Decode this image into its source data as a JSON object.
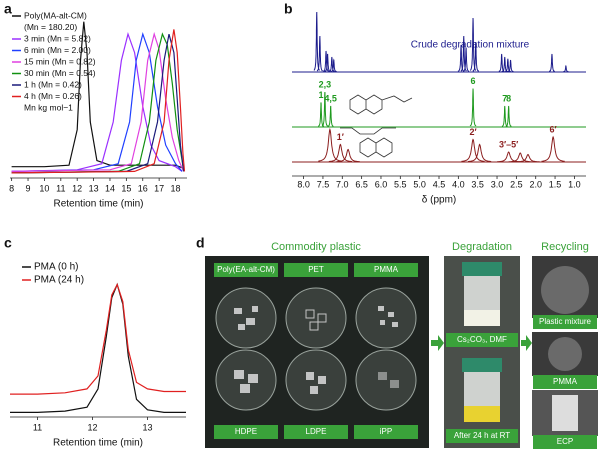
{
  "panel_labels": [
    "a",
    "b",
    "c",
    "d"
  ],
  "chart_data": [
    {
      "type": "line",
      "xlabel": "Retention time (min)",
      "xlim": [
        7.9,
        18.7
      ],
      "xticks": [
        8,
        9,
        10,
        11,
        12,
        13,
        14,
        15,
        16,
        17,
        18
      ],
      "ylim": [
        0,
        1.05
      ],
      "legend_note": "(Mn = 180.20)",
      "legend_units": "Mn kg mol−1",
      "series": [
        {
          "name": "Poly(MA-alt-CM)",
          "color": "#111111",
          "x": [
            8,
            10,
            11.5,
            12.0,
            12.2,
            12.4,
            12.6,
            12.8,
            13.2,
            14,
            16,
            18,
            18.5
          ],
          "values": [
            0.06,
            0.06,
            0.07,
            0.3,
            0.75,
            1.0,
            0.8,
            0.35,
            0.1,
            0.07,
            0.07,
            0.07,
            0.05
          ]
        },
        {
          "name": "3 min (Mn = 5.82)",
          "color": "#9b30ff",
          "x": [
            8,
            12,
            13.5,
            14.2,
            14.7,
            15.1,
            15.5,
            16.0,
            16.5,
            17,
            18,
            18.4
          ],
          "values": [
            0.03,
            0.04,
            0.08,
            0.35,
            0.75,
            0.92,
            0.8,
            0.45,
            0.2,
            0.1,
            0.06,
            0.03
          ]
        },
        {
          "name": "6 min (Mn = 2.00)",
          "color": "#2040ff",
          "x": [
            8,
            13,
            14.5,
            15.2,
            15.6,
            16.0,
            16.4,
            16.9,
            17.4,
            18,
            18.4
          ],
          "values": [
            0.03,
            0.04,
            0.08,
            0.35,
            0.75,
            0.92,
            0.8,
            0.45,
            0.2,
            0.08,
            0.03
          ]
        },
        {
          "name": "15 min (Mn = 0.82)",
          "color": "#e040e0",
          "x": [
            8,
            14,
            15.3,
            15.9,
            16.3,
            16.7,
            17.0,
            17.4,
            17.8,
            18.2,
            18.5
          ],
          "values": [
            0.03,
            0.04,
            0.08,
            0.35,
            0.75,
            0.92,
            0.82,
            0.5,
            0.25,
            0.1,
            0.03
          ]
        },
        {
          "name": "30 min (Mn = 0.54)",
          "color": "#109010",
          "x": [
            8,
            14.5,
            15.8,
            16.4,
            16.8,
            17.2,
            17.5,
            17.8,
            18.1,
            18.4,
            18.5
          ],
          "values": [
            0.02,
            0.03,
            0.08,
            0.35,
            0.75,
            0.92,
            0.85,
            0.6,
            0.3,
            0.1,
            0.03
          ]
        },
        {
          "name": "1 h (Mn = 0.42)",
          "color": "#1a1a7a",
          "x": [
            8,
            15,
            16.3,
            16.9,
            17.3,
            17.6,
            17.9,
            18.1,
            18.3,
            18.5
          ],
          "values": [
            0.02,
            0.03,
            0.08,
            0.35,
            0.75,
            0.92,
            0.8,
            0.5,
            0.2,
            0.03
          ]
        },
        {
          "name": "4 h (Mn = 0.26)",
          "color": "#e02020",
          "x": [
            8,
            15.5,
            16.7,
            17.3,
            17.6,
            17.9,
            18.1,
            18.3,
            18.45,
            18.55
          ],
          "values": [
            0.02,
            0.03,
            0.08,
            0.35,
            0.75,
            0.95,
            0.8,
            0.45,
            0.15,
            0.03
          ]
        }
      ]
    },
    {
      "type": "spectrum",
      "xlabel": "δ (ppm)",
      "xlim": [
        8.3,
        0.7
      ],
      "xticks": [
        {
          "value": 8,
          "label": "8.0"
        },
        7.5,
        {
          "value": 7,
          "label": "7.0"
        },
        6.5,
        {
          "value": 6,
          "label": "6.0"
        },
        5.5,
        {
          "value": 5,
          "label": "5.0"
        },
        4.5,
        {
          "value": 4,
          "label": "4.0"
        },
        3.5,
        {
          "value": 3,
          "label": "3.0"
        },
        2.5,
        {
          "value": 2,
          "label": "2.0"
        },
        1.5,
        {
          "value": 1,
          "label": "1.0"
        }
      ],
      "series": [
        {
          "name": "Crude degradation mixture",
          "color": "#1c1c8c",
          "peaks_x": [
            7.66,
            7.58,
            7.42,
            7.38,
            7.27,
            7.22,
            3.93,
            3.86,
            3.8,
            3.62,
            3.55,
            2.88,
            2.8,
            2.72,
            2.65,
            1.58,
            1.22
          ],
          "peaks_y": [
            1.0,
            0.6,
            0.35,
            0.3,
            0.25,
            0.2,
            0.45,
            0.6,
            0.4,
            0.9,
            0.5,
            0.3,
            0.25,
            0.22,
            0.2,
            0.3,
            0.1
          ]
        },
        {
          "color": "#1f9a1f",
          "peaks_x": [
            7.55,
            7.45,
            7.3,
            3.62,
            2.8,
            2.7
          ],
          "peaks_y": [
            0.35,
            0.5,
            0.3,
            0.55,
            0.3,
            0.3
          ],
          "peak_labels": [
            "1",
            "2,3",
            "4,5",
            "6",
            "7",
            "8"
          ]
        },
        {
          "color": "#8b1e1e",
          "peaks_x": [
            7.32,
            7.05,
            6.85,
            3.62,
            3.45,
            2.7,
            2.4,
            2.2,
            1.55
          ],
          "peaks_y": [
            0.65,
            0.35,
            0.25,
            0.45,
            0.35,
            0.2,
            0.18,
            0.15,
            0.5
          ],
          "peak_labels": [
            null,
            "1′",
            null,
            "2′",
            null,
            "3′–5′",
            null,
            null,
            "6′"
          ]
        }
      ]
    },
    {
      "type": "line",
      "xlabel": "Retention time (min)",
      "xlim": [
        10.5,
        13.7
      ],
      "xticks": [
        11,
        12,
        13
      ],
      "ylim": [
        0,
        1.05
      ],
      "series": [
        {
          "name": "PMA (0 h)",
          "color": "#111111",
          "x": [
            10.5,
            11,
            11.5,
            11.9,
            12.1,
            12.25,
            12.35,
            12.45,
            12.55,
            12.65,
            12.8,
            13.0,
            13.3,
            13.7
          ],
          "values": [
            0.02,
            0.02,
            0.03,
            0.06,
            0.2,
            0.6,
            0.9,
            1.0,
            0.85,
            0.45,
            0.12,
            0.04,
            0.02,
            0.02
          ]
        },
        {
          "name": "PMA (24 h)",
          "color": "#e02020",
          "x": [
            10.5,
            11,
            11.5,
            11.9,
            12.1,
            12.25,
            12.35,
            12.45,
            12.55,
            12.65,
            12.8,
            13.0,
            13.3,
            13.7
          ],
          "values": [
            0.16,
            0.16,
            0.17,
            0.2,
            0.3,
            0.65,
            0.92,
            1.0,
            0.87,
            0.5,
            0.25,
            0.2,
            0.18,
            0.18
          ]
        }
      ]
    }
  ],
  "photo_panel": {
    "commodity_title": "Commodity plastic",
    "samples": [
      "Poly(EA-alt-CM)",
      "PET",
      "PMMA",
      "HDPE",
      "LDPE",
      "iPP"
    ],
    "degradation_title": "Degradation",
    "degradation_steps": [
      "Cs₂CO₃, DMF",
      "After 24 h at RT"
    ],
    "recycling_title": "Recycling",
    "recycling_steps": [
      "Plastic mixture",
      "PMMA",
      "ECP"
    ]
  }
}
